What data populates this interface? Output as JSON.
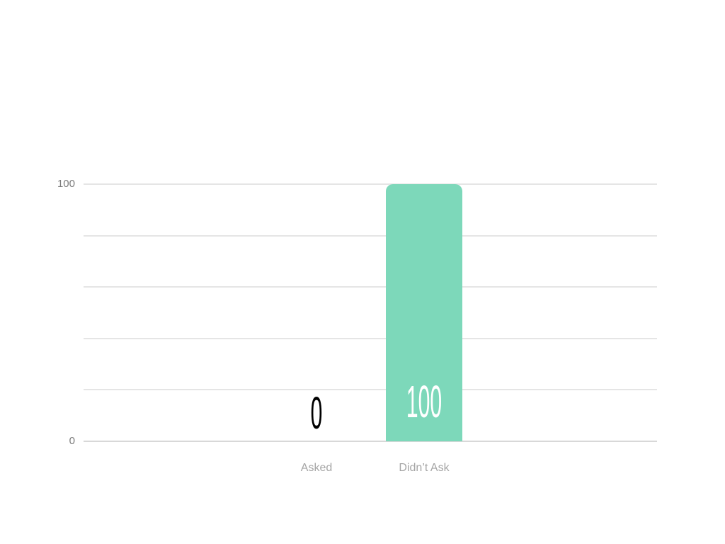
{
  "chart_data": {
    "type": "bar",
    "title": "",
    "xlabel": "",
    "ylabel": "",
    "categories": [
      "Asked",
      "Didn’t Ask"
    ],
    "values": [
      0,
      100
    ],
    "value_labels": [
      "0",
      "100"
    ],
    "ylim": [
      0,
      100
    ],
    "gridline_values": [
      0,
      20,
      40,
      60,
      80,
      100
    ],
    "ytick_values": [
      0,
      100
    ],
    "ytick_labels": [
      "0",
      "100"
    ],
    "legend": "none",
    "grid": "horizontal",
    "colors": {
      "bar_fill": "#7dd8ba",
      "value_label_inside": "#ffffff",
      "value_label_outside": "#000000",
      "gridline": "#e5e5e5",
      "baseline": "#d8d8d8",
      "ytick_text": "#7a7a7a",
      "category_text": "#a5a5a5",
      "background": "#ffffff"
    }
  }
}
